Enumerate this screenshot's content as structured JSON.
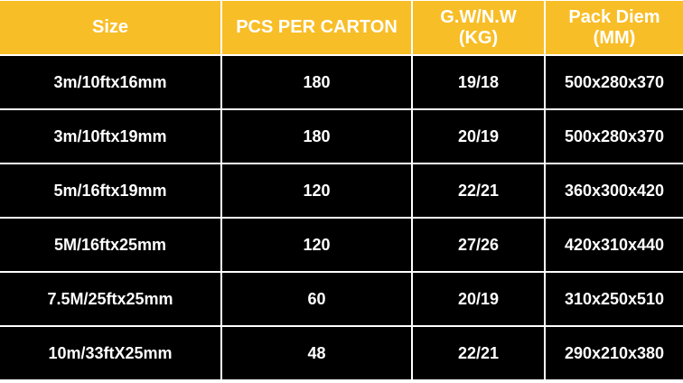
{
  "table": {
    "header": [
      [
        "Size"
      ],
      [
        "PCS PER CARTON"
      ],
      [
        "G.W/N.W",
        "(KG)"
      ],
      [
        "Pack Diem",
        "(MM)"
      ]
    ],
    "rows": [
      [
        "3m/10ftx16mm",
        "180",
        "19/18",
        "500x280x370"
      ],
      [
        "3m/10ftx19mm",
        "180",
        "20/19",
        "500x280x370"
      ],
      [
        "5m/16ftx19mm",
        "120",
        "22/21",
        "360x300x420"
      ],
      [
        "5M/16ftx25mm",
        "120",
        "27/26",
        "420x310x440"
      ],
      [
        "7.5M/25ftx25mm",
        "60",
        "20/19",
        "310x250x510"
      ],
      [
        "10m/33ftX25mm",
        "48",
        "22/21",
        "290x210x380"
      ]
    ]
  }
}
